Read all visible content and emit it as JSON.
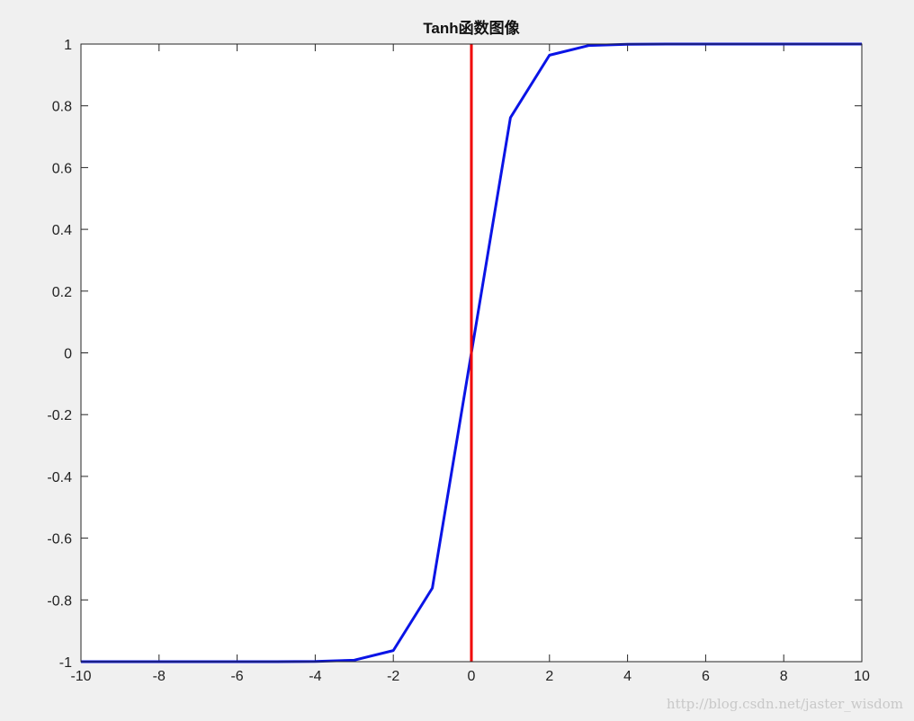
{
  "chart_data": {
    "type": "line",
    "title": "Tanh函数图像",
    "xlabel": "",
    "ylabel": "",
    "xlim": [
      -10,
      10
    ],
    "ylim": [
      -1,
      1
    ],
    "grid": false,
    "xticks": [
      -10,
      -8,
      -6,
      -4,
      -2,
      0,
      2,
      4,
      6,
      8,
      10
    ],
    "yticks": [
      -1,
      -0.8,
      -0.6,
      -0.4,
      -0.2,
      0,
      0.2,
      0.4,
      0.6,
      0.8,
      1
    ],
    "xtick_labels": [
      "-10",
      "-8",
      "-6",
      "-4",
      "-2",
      "0",
      "2",
      "4",
      "6",
      "8",
      "10"
    ],
    "ytick_labels": [
      "-1",
      "-0.8",
      "-0.6",
      "-0.4",
      "-0.2",
      "0",
      "0.2",
      "0.4",
      "0.6",
      "0.8",
      "1"
    ],
    "series": [
      {
        "color": "#0a14e6",
        "x": [
          -10,
          -9,
          -8,
          -7,
          -6,
          -5,
          -4,
          -3,
          -2,
          -1,
          0,
          1,
          2,
          3,
          4,
          5,
          6,
          7,
          8,
          9,
          10
        ],
        "y": [
          -1,
          -1,
          -1,
          -1,
          -1,
          -0.9999,
          -0.9993,
          -0.9951,
          -0.964,
          -0.7616,
          0,
          0.7616,
          0.964,
          0.9951,
          0.9993,
          0.9999,
          1,
          1,
          1,
          1,
          1
        ]
      },
      {
        "color": "#f00000",
        "x": [
          0,
          0
        ],
        "y": [
          -1,
          1
        ]
      }
    ]
  },
  "watermark": "http://blog.csdn.net/jaster_wisdom"
}
